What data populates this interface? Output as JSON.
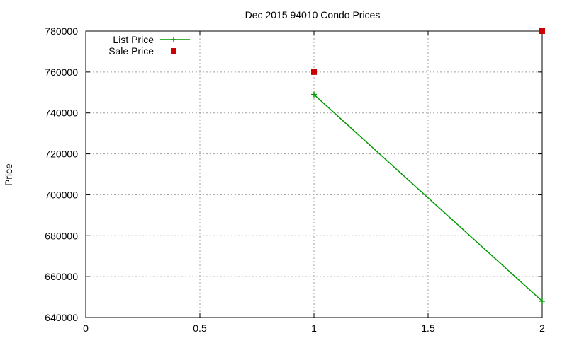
{
  "chart_data": {
    "type": "line",
    "title": "Dec 2015 94010 Condo Prices",
    "xlabel": "",
    "ylabel": "Price",
    "xlim": [
      0,
      2
    ],
    "ylim": [
      640000,
      780000
    ],
    "x_ticks": [
      0,
      0.5,
      1,
      1.5,
      2
    ],
    "x_tick_labels": [
      "0",
      "0.5",
      "1",
      "1.5",
      "2"
    ],
    "y_ticks": [
      640000,
      660000,
      680000,
      700000,
      720000,
      740000,
      760000,
      780000
    ],
    "y_tick_labels": [
      "640000",
      "660000",
      "680000",
      "700000",
      "720000",
      "740000",
      "760000",
      "780000"
    ],
    "grid": true,
    "legend_position": "top-left",
    "series": [
      {
        "name": "List Price",
        "style": "line-plus",
        "color": "#009900",
        "x": [
          1,
          2
        ],
        "y": [
          749000,
          648000
        ]
      },
      {
        "name": "Sale Price",
        "style": "square-markers",
        "color": "#cc0000",
        "x": [
          1,
          2
        ],
        "y": [
          760000,
          780000
        ]
      }
    ]
  }
}
